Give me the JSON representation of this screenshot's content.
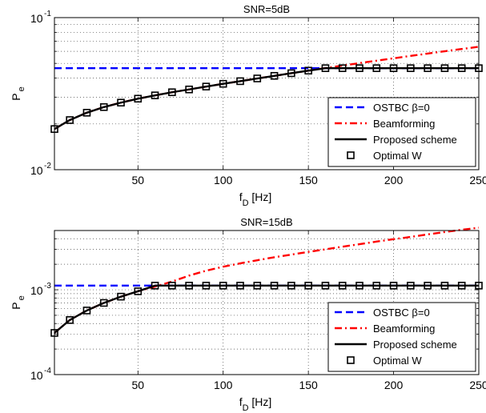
{
  "chart_data": [
    {
      "type": "line",
      "title": "SNR=5dB",
      "xlabel": {
        "main": "f",
        "sub": "D",
        "unit": " [Hz]"
      },
      "ylabel": {
        "main": "P",
        "sub": "e"
      },
      "xlim": [
        1,
        250
      ],
      "ylim": [
        0.01,
        0.1
      ],
      "yscale": "log",
      "grid": true,
      "x_ticks": [
        50,
        100,
        150,
        200,
        250
      ],
      "x_tick_labels": [
        "50",
        "100",
        "150",
        "200",
        "250"
      ],
      "y_ticks": [
        0.01,
        0.1
      ],
      "y_tick_labels": [
        {
          "base": "10",
          "exp": "-2"
        },
        {
          "base": "10",
          "exp": "-1"
        }
      ],
      "legend": {
        "position": "lower-right",
        "entries": [
          "OSTBC β=0",
          "Beamforming",
          "Proposed scheme",
          "Optimal W"
        ]
      },
      "x": [
        1,
        10,
        20,
        30,
        40,
        50,
        60,
        70,
        80,
        90,
        100,
        110,
        120,
        130,
        140,
        150,
        160,
        170,
        180,
        190,
        200,
        210,
        220,
        230,
        240,
        250
      ],
      "series": [
        {
          "name": "OSTBC β=0",
          "color": "#0000ff",
          "style": "dashed",
          "x": [
            1,
            250
          ],
          "values": [
            0.0465,
            0.0465
          ]
        },
        {
          "name": "Beamforming",
          "color": "#ff0000",
          "style": "dashdot",
          "values": [
            0.0185,
            0.0212,
            0.0237,
            0.0258,
            0.0276,
            0.0293,
            0.0308,
            0.0323,
            0.0337,
            0.0352,
            0.0367,
            0.0382,
            0.0398,
            0.0414,
            0.0431,
            0.0448,
            0.0466,
            0.0484,
            0.0502,
            0.0521,
            0.054,
            0.056,
            0.058,
            0.0601,
            0.0622,
            0.0643
          ]
        },
        {
          "name": "Proposed scheme",
          "color": "#000000",
          "style": "solid",
          "values": [
            0.0185,
            0.0212,
            0.0237,
            0.0258,
            0.0276,
            0.0293,
            0.0308,
            0.0323,
            0.0337,
            0.0352,
            0.0367,
            0.0382,
            0.0398,
            0.0414,
            0.0431,
            0.0448,
            0.0465,
            0.0465,
            0.0465,
            0.0465,
            0.0465,
            0.0465,
            0.0465,
            0.0465,
            0.0465,
            0.0465
          ]
        },
        {
          "name": "Optimal W",
          "color": "#000000",
          "style": "square-markers",
          "values": [
            0.0185,
            0.0212,
            0.0237,
            0.0258,
            0.0276,
            0.0293,
            0.0308,
            0.0323,
            0.0337,
            0.0352,
            0.0367,
            0.0382,
            0.0398,
            0.0414,
            0.0431,
            0.0448,
            0.0465,
            0.0465,
            0.0465,
            0.0465,
            0.0465,
            0.0465,
            0.0465,
            0.0465,
            0.0465,
            0.0465
          ]
        }
      ]
    },
    {
      "type": "line",
      "title": "SNR=15dB",
      "xlabel": {
        "main": "f",
        "sub": "D",
        "unit": " [Hz]"
      },
      "ylabel": {
        "main": "P",
        "sub": "e"
      },
      "xlim": [
        1,
        250
      ],
      "ylim": [
        0.0001,
        0.005
      ],
      "yscale": "log",
      "grid": true,
      "x_ticks": [
        50,
        100,
        150,
        200,
        250
      ],
      "x_tick_labels": [
        "50",
        "100",
        "150",
        "200",
        "250"
      ],
      "y_ticks": [
        0.0001,
        0.001
      ],
      "y_tick_labels": [
        {
          "base": "10",
          "exp": "-4"
        },
        {
          "base": "10",
          "exp": "-3"
        }
      ],
      "legend": {
        "position": "lower-right",
        "entries": [
          "OSTBC β=0",
          "Beamforming",
          "Proposed scheme",
          "Optimal W"
        ]
      },
      "x": [
        1,
        10,
        20,
        30,
        40,
        50,
        60,
        70,
        80,
        90,
        100,
        110,
        120,
        130,
        140,
        150,
        160,
        170,
        180,
        190,
        200,
        210,
        220,
        230,
        240,
        250
      ],
      "series": [
        {
          "name": "OSTBC β=0",
          "color": "#0000ff",
          "style": "dashed",
          "x": [
            1,
            250
          ],
          "values": [
            0.00112,
            0.00112
          ]
        },
        {
          "name": "Beamforming",
          "color": "#ff0000",
          "style": "dashdot",
          "values": [
            0.00031,
            0.00044,
            0.00057,
            0.0007,
            0.00083,
            0.00096,
            0.00109,
            0.00125,
            0.00147,
            0.00168,
            0.00187,
            0.00205,
            0.00223,
            0.00242,
            0.0026,
            0.0028,
            0.003,
            0.00322,
            0.00345,
            0.0037,
            0.00395,
            0.0042,
            0.0045,
            0.0048,
            0.0051,
            0.0054
          ]
        },
        {
          "name": "Proposed scheme",
          "color": "#000000",
          "style": "solid",
          "values": [
            0.00031,
            0.00044,
            0.00057,
            0.0007,
            0.00083,
            0.00096,
            0.00112,
            0.00112,
            0.00112,
            0.00112,
            0.00112,
            0.00112,
            0.00112,
            0.00112,
            0.00112,
            0.00112,
            0.00112,
            0.00112,
            0.00112,
            0.00112,
            0.00112,
            0.00112,
            0.00112,
            0.00112,
            0.00112,
            0.00112
          ]
        },
        {
          "name": "Optimal W",
          "color": "#000000",
          "style": "square-markers",
          "values": [
            0.00031,
            0.00044,
            0.00057,
            0.0007,
            0.00083,
            0.00096,
            0.00112,
            0.00112,
            0.00112,
            0.00112,
            0.00112,
            0.00112,
            0.00112,
            0.00112,
            0.00112,
            0.00112,
            0.00112,
            0.00112,
            0.00112,
            0.00112,
            0.00112,
            0.00112,
            0.00112,
            0.00112,
            0.00112,
            0.00112
          ]
        }
      ]
    }
  ]
}
